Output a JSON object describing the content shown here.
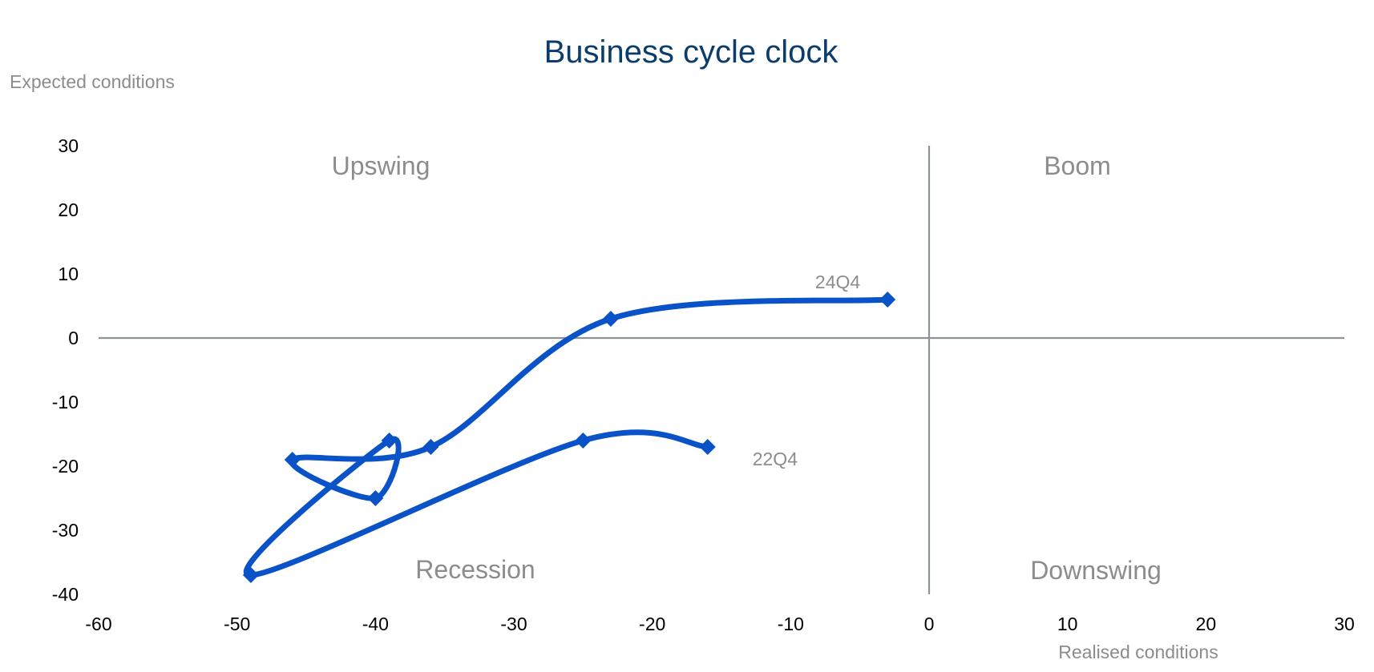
{
  "chart_data": {
    "type": "scatter",
    "title": "Business cycle clock",
    "xlabel": "Realised conditions",
    "ylabel": "Expected conditions",
    "xlim": [
      -60,
      30
    ],
    "ylim": [
      -40,
      30
    ],
    "xticks": [
      -60,
      -50,
      -40,
      -30,
      -20,
      -10,
      0,
      10,
      20,
      30
    ],
    "yticks": [
      30,
      20,
      10,
      0,
      -10,
      -20,
      -30,
      -40
    ],
    "grid": false,
    "series": [
      {
        "color": "#0a52c7",
        "marker": "diamond",
        "line": "smooth",
        "points": [
          {
            "x": -16,
            "y": -17
          },
          {
            "x": -25,
            "y": -16
          },
          {
            "x": -49,
            "y": -37
          },
          {
            "x": -39,
            "y": -16
          },
          {
            "x": -40,
            "y": -25
          },
          {
            "x": -46,
            "y": -19
          },
          {
            "x": -36,
            "y": -17
          },
          {
            "x": -23,
            "y": 3
          },
          {
            "x": -3,
            "y": 6
          }
        ]
      }
    ],
    "point_labels": [
      {
        "text": "22Q4",
        "x": -16,
        "y": -17
      },
      {
        "text": "24Q4",
        "x": -3,
        "y": 6
      }
    ],
    "quadrant_labels": {
      "top_left": "Upswing",
      "top_right": "Boom",
      "bottom_left": "Recession",
      "bottom_right": "Downswing"
    },
    "colors": {
      "series": "#0a52c7",
      "axis": "#8c9399",
      "title": "#0c3c6b",
      "muted_text": "#8c8c8c"
    }
  }
}
